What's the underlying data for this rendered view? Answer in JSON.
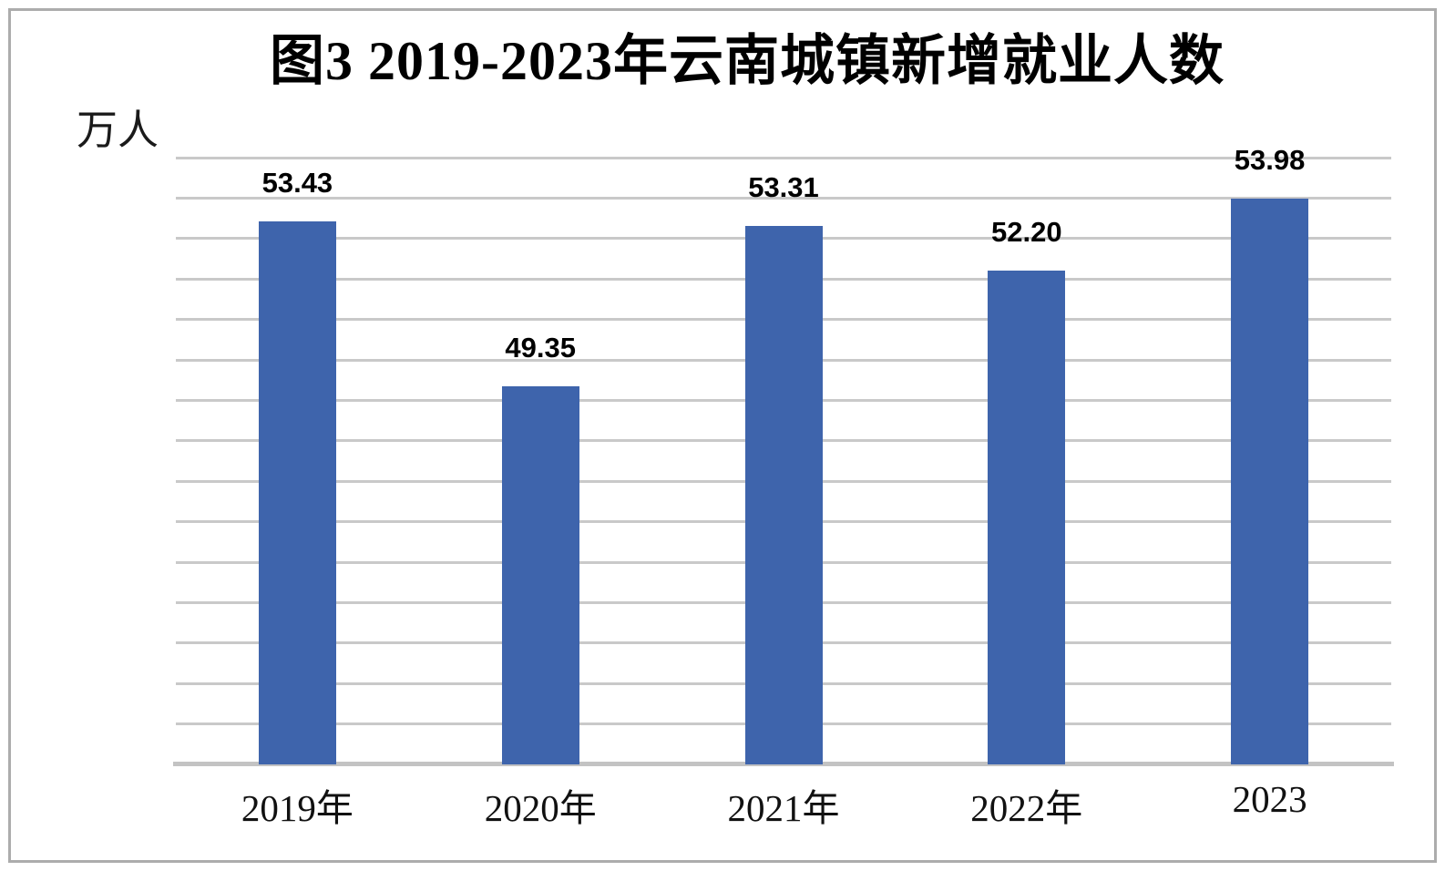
{
  "figure": {
    "title": "图3 2019-2023年云南城镇新增就业人数",
    "unit_label": "万人"
  },
  "chart_data": {
    "type": "bar",
    "title": "图3 2019-2023年云南城镇新增就业人数",
    "unit_label": "万人",
    "categories": [
      "2019年",
      "2020年",
      "2021年",
      "2022年",
      "2023"
    ],
    "values": [
      53.43,
      49.35,
      53.31,
      52.2,
      53.98
    ],
    "data_labels": [
      "53.43",
      "49.35",
      "53.31",
      "52.20",
      "53.98"
    ],
    "xlabel": "",
    "ylabel": "万人",
    "ylim": [
      40,
      55
    ],
    "grid_step": 1,
    "grid": "horizontal-only",
    "y_tick_labels_visible": false,
    "legend_position": "none",
    "colors": {
      "bar": "#3E64AC",
      "gridline": "#C9C9C9",
      "axis_line": "#C3C3C3",
      "frame_border": "#ACACAC",
      "text": "#000000"
    }
  }
}
